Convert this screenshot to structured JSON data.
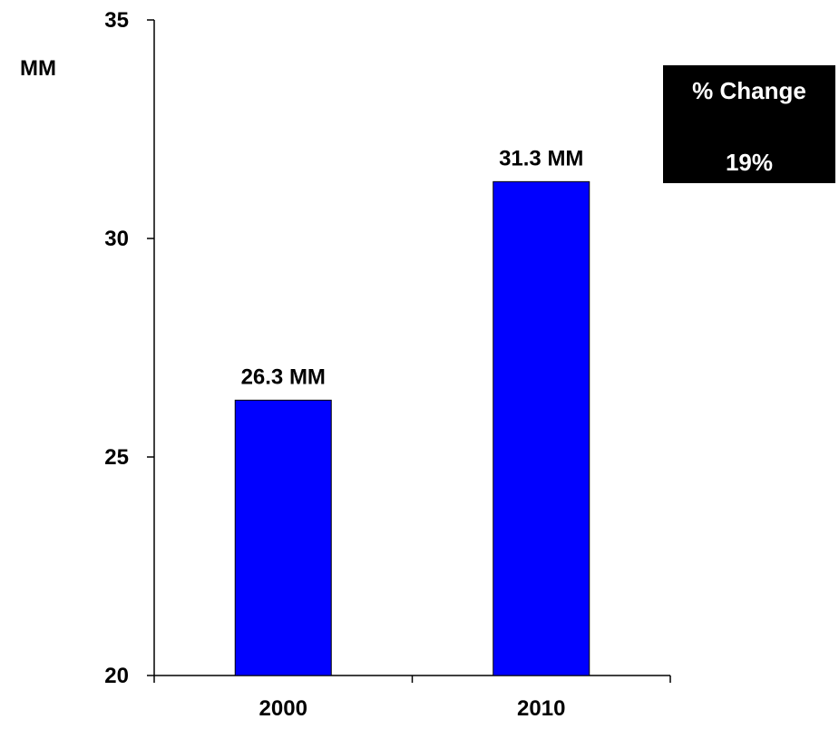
{
  "chart_data": {
    "type": "bar",
    "categories": [
      "2000",
      "2010"
    ],
    "values": [
      26.3,
      31.3
    ],
    "data_labels": [
      "26.3 MM",
      "31.3 MM"
    ],
    "ylabel": "MM",
    "ylim": [
      20,
      35
    ],
    "yticks": [
      20,
      25,
      30,
      35
    ],
    "bar_color": "#0000FF",
    "grid": false
  },
  "change_box": {
    "title": "% Change",
    "value": "19%"
  }
}
